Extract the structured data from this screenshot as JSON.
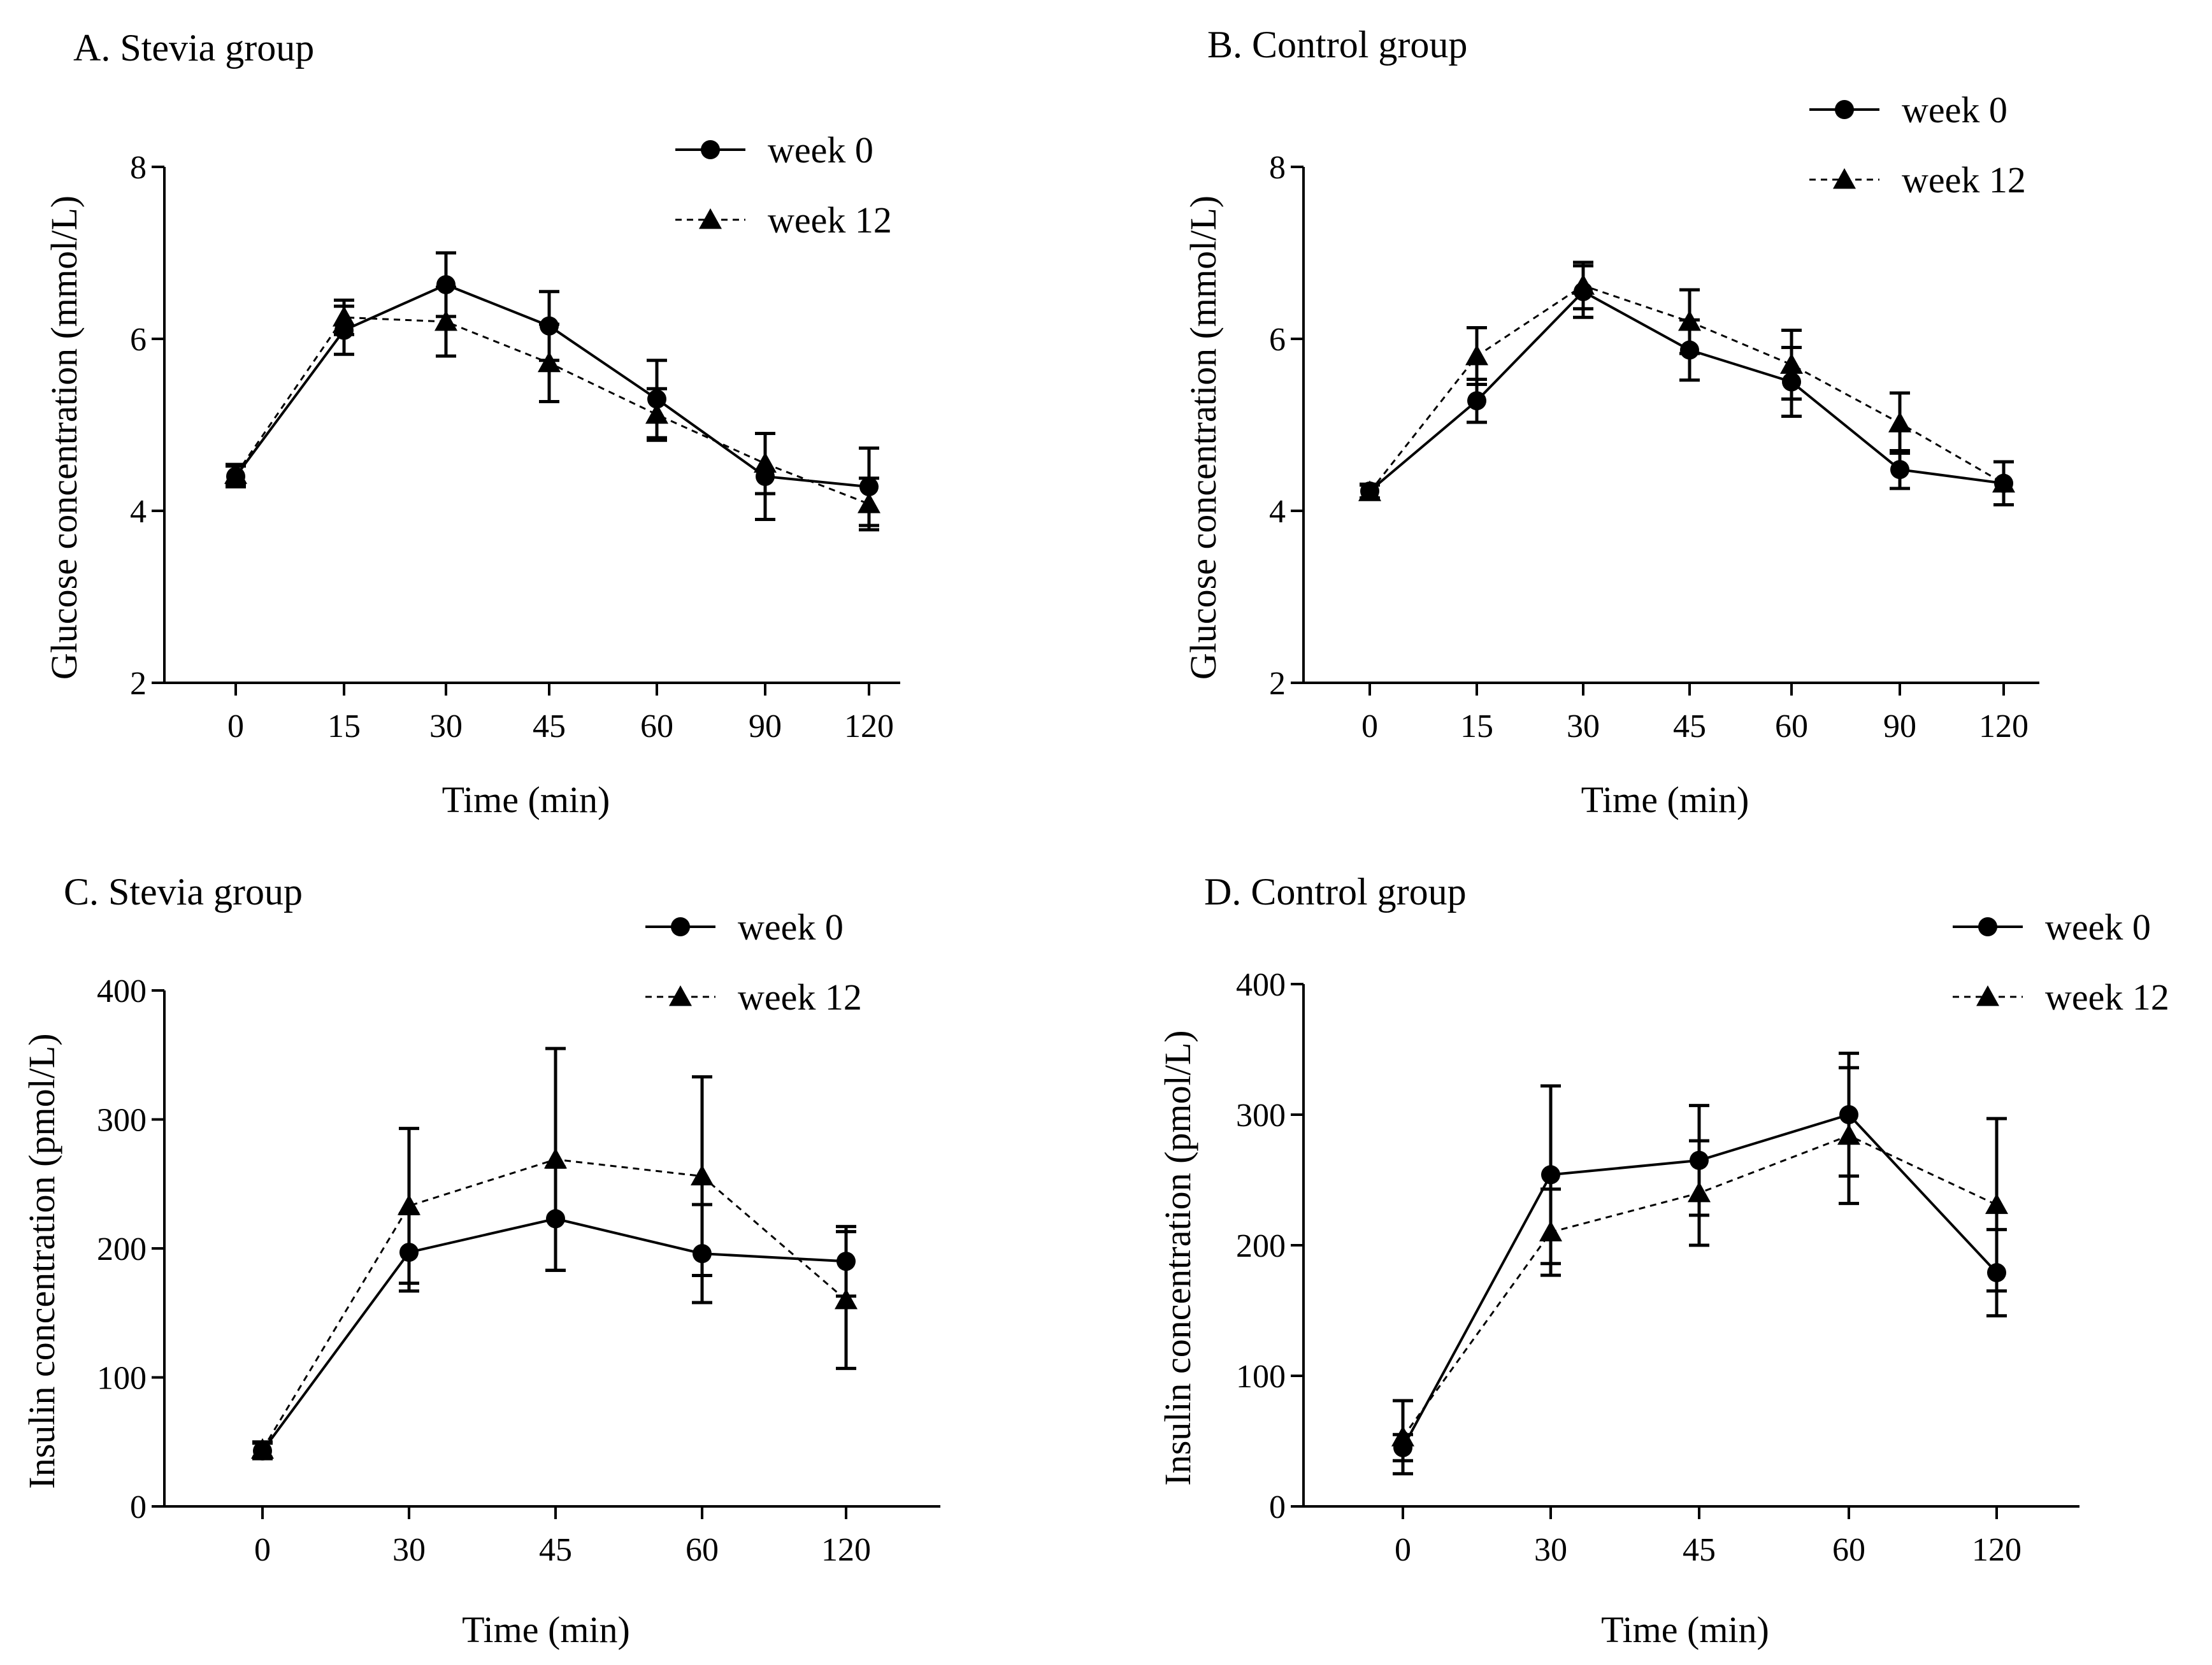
{
  "chart_data": [
    {
      "type": "line",
      "title": "A. Stevia group",
      "xlabel": "Time (min)",
      "ylabel": "Glucose concentration (mmol/L)",
      "categories": [
        "0",
        "15",
        "30",
        "45",
        "60",
        "90",
        "120"
      ],
      "ylim": [
        2,
        8
      ],
      "yticks": [
        "2",
        "4",
        "6",
        "8"
      ],
      "legend_position": "top-right",
      "series": [
        {
          "name": "week 0",
          "marker": "circle",
          "line": "solid",
          "values": [
            4.4,
            6.1,
            6.63,
            6.15,
            5.3,
            4.4,
            4.28
          ],
          "errors": [
            0.12,
            0.28,
            0.37,
            0.4,
            0.45,
            0.5,
            0.45
          ]
        },
        {
          "name": "week 12",
          "marker": "triangle",
          "line": "dashed",
          "values": [
            4.42,
            6.25,
            6.2,
            5.72,
            5.12,
            4.55,
            4.08
          ],
          "errors": [
            0.12,
            0.2,
            0.4,
            0.45,
            0.3,
            0.35,
            0.3
          ]
        }
      ]
    },
    {
      "type": "line",
      "title": "B. Control group",
      "xlabel": "Time (min)",
      "ylabel": "Glucose concentration (mmol/L)",
      "categories": [
        "0",
        "15",
        "30",
        "45",
        "60",
        "90",
        "120"
      ],
      "ylim": [
        2,
        8
      ],
      "yticks": [
        "2",
        "4",
        "6",
        "8"
      ],
      "legend_position": "top-right",
      "series": [
        {
          "name": "week 0",
          "marker": "circle",
          "line": "solid",
          "values": [
            4.23,
            5.28,
            6.55,
            5.87,
            5.5,
            4.48,
            4.32
          ],
          "errors": [
            0.08,
            0.25,
            0.3,
            0.35,
            0.4,
            0.22,
            0.25
          ]
        },
        {
          "name": "week 12",
          "marker": "triangle",
          "line": "dashed",
          "values": [
            4.22,
            5.8,
            6.62,
            6.2,
            5.7,
            5.02,
            4.32
          ],
          "errors": [
            0.08,
            0.33,
            0.27,
            0.37,
            0.4,
            0.35,
            0.25
          ]
        }
      ]
    },
    {
      "type": "line",
      "title": "C. Stevia group",
      "xlabel": "Time (min)",
      "ylabel": "Insulin concentration (pmol/L)",
      "categories": [
        "0",
        "30",
        "45",
        "60",
        "120"
      ],
      "ylim": [
        0,
        400
      ],
      "yticks": [
        "0",
        "100",
        "200",
        "300",
        "400"
      ],
      "legend_position": "top-right",
      "series": [
        {
          "name": "week 0",
          "marker": "circle",
          "line": "solid",
          "values": [
            43,
            197,
            223,
            196,
            190
          ],
          "errors": [
            6,
            30,
            40,
            38,
            27
          ]
        },
        {
          "name": "week 12",
          "marker": "triangle",
          "line": "dashed",
          "values": [
            44,
            233,
            269,
            256,
            160
          ],
          "errors": [
            6,
            60,
            86,
            77,
            53
          ]
        }
      ]
    },
    {
      "type": "line",
      "title": "D. Control group",
      "xlabel": "Time (min)",
      "ylabel": "Insulin concentration (pmol/L)",
      "categories": [
        "0",
        "30",
        "45",
        "60",
        "120"
      ],
      "ylim": [
        0,
        400
      ],
      "yticks": [
        "0",
        "100",
        "200",
        "300",
        "400"
      ],
      "legend_position": "top-right",
      "series": [
        {
          "name": "week 0",
          "marker": "circle",
          "line": "solid",
          "values": [
            45,
            254,
            265,
            300,
            179
          ],
          "errors": [
            10,
            68,
            42,
            47,
            33
          ]
        },
        {
          "name": "week 12",
          "marker": "triangle",
          "line": "dashed",
          "values": [
            53,
            210,
            240,
            284,
            231
          ],
          "errors": [
            28,
            33,
            40,
            52,
            66
          ]
        }
      ]
    }
  ]
}
